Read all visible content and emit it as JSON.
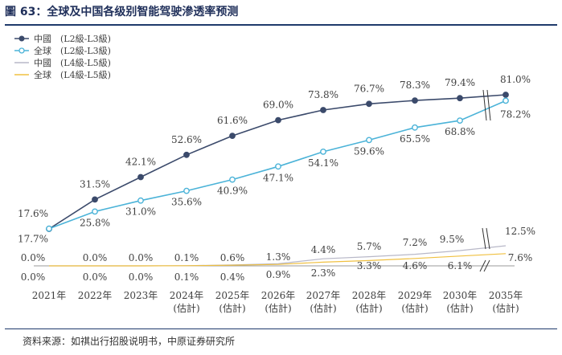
{
  "title": "圖 63：全球及中国各级别智能驾驶滲透率预测",
  "source": "资料来源：如祺出行招股说明书，中原证券研究所",
  "colors": {
    "china_l2": "#3b4a6b",
    "global_l2": "#4bb3d8",
    "china_l4": "#b8b8c8",
    "global_l4": "#f0c040",
    "frame": "#1f3a6b"
  },
  "chart_data": {
    "type": "line",
    "categories": [
      [
        "2021年"
      ],
      [
        "2022年"
      ],
      [
        "2023年"
      ],
      [
        "2024年",
        "(估計)"
      ],
      [
        "2025年",
        "(估計)"
      ],
      [
        "2026年",
        "(估計)"
      ],
      [
        "2027年",
        "(估計)"
      ],
      [
        "2028年",
        "(估計)"
      ],
      [
        "2029年",
        "(估計)"
      ],
      [
        "2030年",
        "(估計)"
      ],
      [
        "2035年",
        "(估計)"
      ]
    ],
    "axis_break": "between 2030 and 2035",
    "unit": "%",
    "ylim": [
      0,
      85
    ],
    "legend_position": "top-left",
    "series": [
      {
        "name": "中國　(L2級-L3級)",
        "values": [
          17.6,
          31.5,
          42.1,
          52.6,
          61.6,
          69.0,
          73.8,
          76.7,
          78.3,
          79.4,
          81.0
        ],
        "labels": [
          "17.6%",
          "31.5%",
          "42.1%",
          "52.6%",
          "61.6%",
          "69.0%",
          "73.8%",
          "76.7%",
          "78.3%",
          "79.4%",
          "81.0%"
        ]
      },
      {
        "name": "全球　(L2級-L3級)",
        "values": [
          17.7,
          25.8,
          31.0,
          35.6,
          40.9,
          47.1,
          54.1,
          59.6,
          65.5,
          68.8,
          78.2
        ],
        "labels": [
          "17.7%",
          "25.8%",
          "31.0%",
          "35.6%",
          "40.9%",
          "47.1%",
          "54.1%",
          "59.6%",
          "65.5%",
          "68.8%",
          "78.2%"
        ]
      },
      {
        "name": "中國　(L4級-L5級)",
        "values": [
          0.0,
          0.0,
          0.0,
          0.1,
          0.6,
          1.3,
          4.4,
          5.7,
          7.2,
          9.5,
          12.5
        ],
        "labels": [
          "0.0%",
          "0.0%",
          "0.0%",
          "0.1%",
          "0.6%",
          "1.3%",
          "4.4%",
          "5.7%",
          "7.2%",
          "9.5%",
          "12.5%"
        ]
      },
      {
        "name": "全球　(L4級-L5級)",
        "values": [
          0.0,
          0.0,
          0.0,
          0.1,
          0.4,
          0.9,
          2.3,
          3.3,
          4.6,
          6.1,
          7.6
        ],
        "labels": [
          "0.0%",
          "0.0%",
          "0.0%",
          "0.1%",
          "0.4%",
          "0.9%",
          "2.3%",
          "3.3%",
          "4.6%",
          "6.1%",
          "7.6%"
        ]
      }
    ]
  }
}
